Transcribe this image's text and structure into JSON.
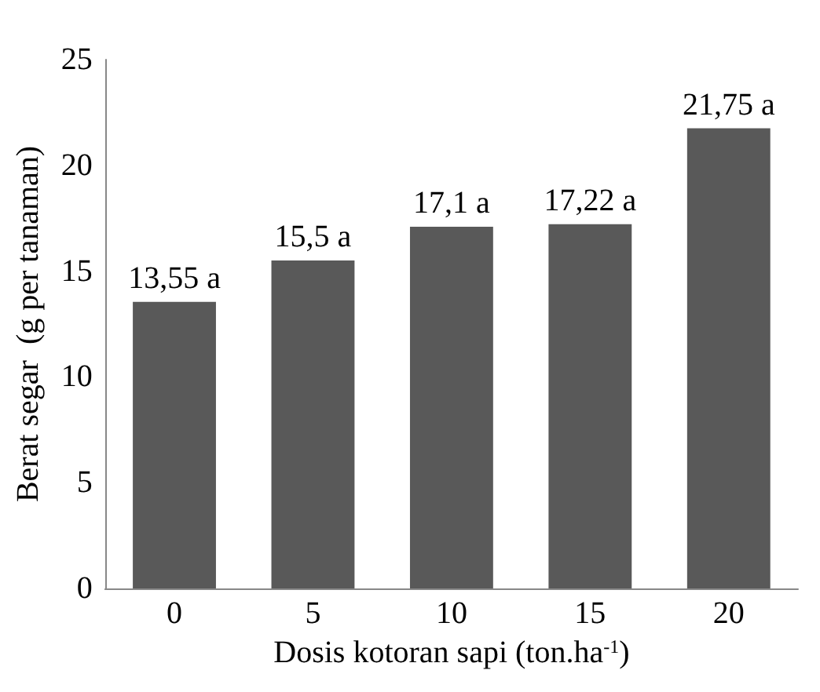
{
  "chart_data": {
    "type": "bar",
    "xlabel": "Dosis kotoran sapi (ton.ha$^{-1}$)",
    "ylabel": "Berat segar  (g per tanaman)",
    "categories": [
      "0",
      "5",
      "10",
      "15",
      "20"
    ],
    "values": [
      13.55,
      15.5,
      17.1,
      17.22,
      21.75
    ],
    "value_labels": [
      "13,55 a",
      "15,5 a",
      "17,1 a",
      "17,22 a",
      "21,75 a"
    ],
    "color": "#595959",
    "ylim": [
      0,
      25
    ],
    "yticks": [
      0,
      5,
      10,
      15,
      20,
      25
    ],
    "grid": false
  }
}
